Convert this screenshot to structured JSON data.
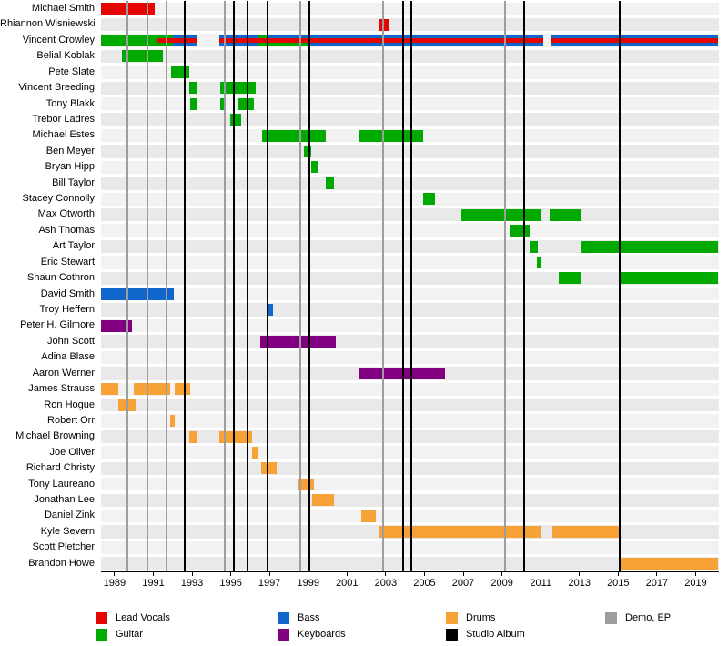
{
  "colors": {
    "lead_vocals": "#e60505",
    "guitar": "#00aa00",
    "bass": "#1166cc",
    "keyboards": "#800080",
    "drums": "#f7a237",
    "studio_album": "#000000",
    "demo_ep": "#9e9e9e"
  },
  "chart_data": {
    "type": "timeline",
    "title": "",
    "axis": {
      "start": 1988.3,
      "end": 2020.2,
      "tick_years": [
        1989,
        1991,
        1993,
        1995,
        1997,
        1999,
        2001,
        2003,
        2005,
        2007,
        2009,
        2011,
        2013,
        2015,
        2017,
        2019
      ]
    },
    "legend": [
      {
        "label": "Lead Vocals",
        "key": "lead_vocals",
        "col": 0,
        "row": 0
      },
      {
        "label": "Guitar",
        "key": "guitar",
        "col": 0,
        "row": 1
      },
      {
        "label": "Bass",
        "key": "bass",
        "col": 1,
        "row": 0
      },
      {
        "label": "Keyboards",
        "key": "keyboards",
        "col": 1,
        "row": 1
      },
      {
        "label": "Drums",
        "key": "drums",
        "col": 2,
        "row": 0
      },
      {
        "label": "Studio Album",
        "key": "studio_album",
        "col": 2,
        "row": 1
      },
      {
        "label": "Demo, EP",
        "key": "demo_ep",
        "col": 3,
        "row": 0
      }
    ],
    "lines": {
      "demo_ep": [
        1989.65,
        1990.7,
        1991.7,
        1994.7,
        1998.6,
        2002.85,
        2009.15
      ],
      "studio_album": [
        1992.6,
        1995.15,
        1995.85,
        1996.9,
        1999.05,
        2003.9,
        2004.3,
        2010.15,
        2015.1
      ]
    },
    "members": [
      {
        "name": "Michael Smith",
        "segments": [
          {
            "roles": [
              "lead_vocals"
            ],
            "start": 1988.3,
            "end": 1991.05
          }
        ]
      },
      {
        "name": "Rhiannon Wisniewski",
        "segments": [
          {
            "roles": [
              "lead_vocals"
            ],
            "start": 2002.65,
            "end": 2003.2
          }
        ]
      },
      {
        "name": "Vincent Crowley",
        "segments": [
          {
            "roles": [
              "guitar"
            ],
            "start": 1988.3,
            "end": 1991.2
          },
          {
            "roles": [
              "guitar",
              "lead_vocals",
              "guitar"
            ],
            "start": 1991.2,
            "end": 1992.0
          },
          {
            "roles": [
              "bass",
              "lead_vocals",
              "bass"
            ],
            "start": 1992.0,
            "end": 1993.3
          },
          {
            "roles": [
              "bass",
              "lead_vocals",
              "bass"
            ],
            "start": 1994.4,
            "end": 1996.45
          },
          {
            "roles": [
              "guitar",
              "lead_vocals",
              "guitar"
            ],
            "start": 1996.45,
            "end": 1996.95
          },
          {
            "roles": [
              "bass",
              "lead_vocals",
              "guitar"
            ],
            "start": 1996.95,
            "end": 1998.95
          },
          {
            "roles": [
              "bass",
              "lead_vocals",
              "bass"
            ],
            "start": 1998.95,
            "end": 2011.15
          },
          {
            "roles": [
              "bass",
              "lead_vocals",
              "bass"
            ],
            "start": 2011.5,
            "end": 2020.15
          }
        ]
      },
      {
        "name": "Belial Koblak",
        "segments": [
          {
            "roles": [
              "guitar"
            ],
            "start": 1989.4,
            "end": 1991.5
          }
        ]
      },
      {
        "name": "Pete Slate",
        "segments": [
          {
            "roles": [
              "guitar"
            ],
            "start": 1991.9,
            "end": 1992.85
          }
        ]
      },
      {
        "name": "Vincent Breeding",
        "segments": [
          {
            "roles": [
              "guitar"
            ],
            "start": 1992.85,
            "end": 1993.25
          },
          {
            "roles": [
              "guitar"
            ],
            "start": 1994.45,
            "end": 1996.3
          }
        ]
      },
      {
        "name": "Tony Blakk",
        "segments": [
          {
            "roles": [
              "guitar"
            ],
            "start": 1992.9,
            "end": 1993.3
          },
          {
            "roles": [
              "guitar"
            ],
            "start": 1994.45,
            "end": 1994.7
          },
          {
            "roles": [
              "guitar"
            ],
            "start": 1995.4,
            "end": 1996.2
          }
        ]
      },
      {
        "name": "Trebor Ladres",
        "segments": [
          {
            "roles": [
              "guitar"
            ],
            "start": 1994.95,
            "end": 1995.55
          }
        ]
      },
      {
        "name": "Michael Estes",
        "segments": [
          {
            "roles": [
              "guitar"
            ],
            "start": 1996.6,
            "end": 1999.9
          },
          {
            "roles": [
              "guitar"
            ],
            "start": 2001.6,
            "end": 2004.95
          }
        ]
      },
      {
        "name": "Ben Meyer",
        "segments": [
          {
            "roles": [
              "guitar"
            ],
            "start": 1998.8,
            "end": 1999.15
          }
        ]
      },
      {
        "name": "Bryan Hipp",
        "segments": [
          {
            "roles": [
              "guitar"
            ],
            "start": 1999.15,
            "end": 1999.5
          }
        ]
      },
      {
        "name": "Bill Taylor",
        "segments": [
          {
            "roles": [
              "guitar"
            ],
            "start": 1999.9,
            "end": 2000.35
          }
        ]
      },
      {
        "name": "Stacey Connolly",
        "segments": [
          {
            "roles": [
              "guitar"
            ],
            "start": 2004.95,
            "end": 2005.55
          }
        ]
      },
      {
        "name": "Max Otworth",
        "segments": [
          {
            "roles": [
              "guitar"
            ],
            "start": 2006.9,
            "end": 2011.05
          },
          {
            "roles": [
              "guitar"
            ],
            "start": 2011.45,
            "end": 2013.1
          }
        ]
      },
      {
        "name": "Ash Thomas",
        "segments": [
          {
            "roles": [
              "guitar"
            ],
            "start": 2009.4,
            "end": 2010.45
          }
        ]
      },
      {
        "name": "Art Taylor",
        "segments": [
          {
            "roles": [
              "guitar"
            ],
            "start": 2010.45,
            "end": 2010.85
          },
          {
            "roles": [
              "guitar"
            ],
            "start": 2013.1,
            "end": 2020.15
          }
        ]
      },
      {
        "name": "Eric Stewart",
        "segments": [
          {
            "roles": [
              "guitar"
            ],
            "start": 2010.8,
            "end": 2011.05
          }
        ]
      },
      {
        "name": "Shaun Cothron",
        "segments": [
          {
            "roles": [
              "guitar"
            ],
            "start": 2011.95,
            "end": 2013.1
          },
          {
            "roles": [
              "guitar"
            ],
            "start": 2015.1,
            "end": 2020.15
          }
        ]
      },
      {
        "name": "David Smith",
        "segments": [
          {
            "roles": [
              "bass"
            ],
            "start": 1988.3,
            "end": 1992.05
          }
        ]
      },
      {
        "name": "Troy Heffern",
        "segments": [
          {
            "roles": [
              "bass"
            ],
            "start": 1996.9,
            "end": 1997.2
          }
        ]
      },
      {
        "name": "Peter H. Gilmore",
        "segments": [
          {
            "roles": [
              "keyboards"
            ],
            "start": 1988.3,
            "end": 1989.9
          }
        ]
      },
      {
        "name": "John Scott",
        "segments": [
          {
            "roles": [
              "keyboards"
            ],
            "start": 1996.5,
            "end": 2000.4
          }
        ]
      },
      {
        "name": "Adina Blase",
        "segments": []
      },
      {
        "name": "Aaron Werner",
        "segments": [
          {
            "roles": [
              "keyboards"
            ],
            "start": 2001.6,
            "end": 2006.05
          }
        ]
      },
      {
        "name": "James Strauss",
        "segments": [
          {
            "roles": [
              "drums"
            ],
            "start": 1988.3,
            "end": 1989.2
          },
          {
            "roles": [
              "drums"
            ],
            "start": 1990.0,
            "end": 1991.85
          },
          {
            "roles": [
              "drums"
            ],
            "start": 1992.1,
            "end": 1992.9
          }
        ]
      },
      {
        "name": "Ron Hogue",
        "segments": [
          {
            "roles": [
              "drums"
            ],
            "start": 1989.2,
            "end": 1990.1
          }
        ]
      },
      {
        "name": "Robert Orr",
        "segments": [
          {
            "roles": [
              "drums"
            ],
            "start": 1991.85,
            "end": 1992.1
          }
        ]
      },
      {
        "name": "Michael Browning",
        "segments": [
          {
            "roles": [
              "drums"
            ],
            "start": 1992.85,
            "end": 1993.3
          },
          {
            "roles": [
              "drums"
            ],
            "start": 1994.4,
            "end": 1996.1
          }
        ]
      },
      {
        "name": "Joe Oliver",
        "segments": [
          {
            "roles": [
              "drums"
            ],
            "start": 1996.1,
            "end": 1996.4
          }
        ]
      },
      {
        "name": "Richard Christy",
        "segments": [
          {
            "roles": [
              "drums"
            ],
            "start": 1996.55,
            "end": 1997.35
          }
        ]
      },
      {
        "name": "Tony Laureano",
        "segments": [
          {
            "roles": [
              "drums"
            ],
            "start": 1998.5,
            "end": 1999.3
          }
        ]
      },
      {
        "name": "Jonathan Lee",
        "segments": [
          {
            "roles": [
              "drums"
            ],
            "start": 1999.2,
            "end": 2000.35
          }
        ]
      },
      {
        "name": "Daniel Zink",
        "segments": [
          {
            "roles": [
              "drums"
            ],
            "start": 2001.75,
            "end": 2002.5
          }
        ]
      },
      {
        "name": "Kyle Severn",
        "segments": [
          {
            "roles": [
              "drums"
            ],
            "start": 2002.65,
            "end": 2011.05
          },
          {
            "roles": [
              "drums"
            ],
            "start": 2011.6,
            "end": 2015.1
          }
        ]
      },
      {
        "name": "Scott Pletcher",
        "segments": []
      },
      {
        "name": "Brandon Howe",
        "segments": [
          {
            "roles": [
              "drums"
            ],
            "start": 2015.1,
            "end": 2020.15
          }
        ]
      }
    ]
  }
}
